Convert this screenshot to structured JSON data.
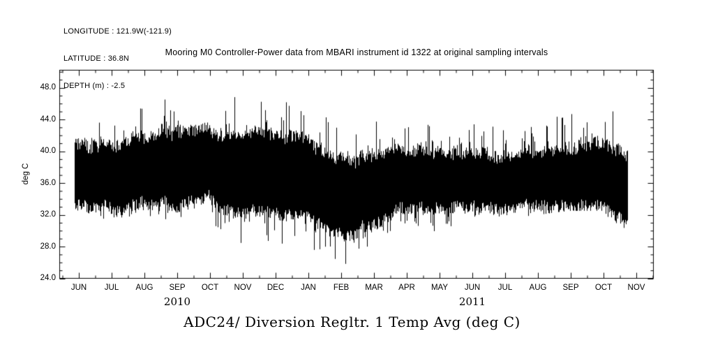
{
  "meta": {
    "longitude": "LONGITUDE : 121.9W(-121.9)",
    "latitude": "LATITUDE : 36.8N",
    "depth": "DEPTH (m) : -2.5"
  },
  "title": "Mooring M0 Controller-Power data from MBARI instrument id 1322 at original sampling intervals",
  "caption": "ADC24/ Diversion Regltr. 1 Temp Avg (deg C)",
  "chart_data": {
    "type": "line",
    "title": "Mooring M0 Controller-Power data from MBARI instrument id 1322 at original sampling intervals",
    "ylabel": "deg C",
    "ylim": [
      24,
      50.2
    ],
    "grid": false,
    "y_ticks": [
      24,
      28,
      32,
      36,
      40,
      44,
      48
    ],
    "y_tick_labels": [
      "24.0",
      "28.0",
      "32.0",
      "36.0",
      "40.0",
      "44.0",
      "48.0"
    ],
    "x_tick_labels": [
      "JUN",
      "JUL",
      "AUG",
      "SEP",
      "OCT",
      "NOV",
      "DEC",
      "JAN",
      "FEB",
      "MAR",
      "APR",
      "MAY",
      "JUN",
      "JUL",
      "AUG",
      "SEP",
      "OCT",
      "NOV"
    ],
    "years": [
      {
        "label": "2010",
        "month_start": 0,
        "month_end": 6
      },
      {
        "label": "2011",
        "month_start": 7,
        "month_end": 17
      }
    ],
    "series": [
      {
        "name": "ADC24/ Diversion Regltr. 1 Temp Avg (deg C)",
        "months": [
          "JUN 2010",
          "JUL 2010",
          "AUG 2010",
          "SEP 2010",
          "OCT 2010",
          "NOV 2010",
          "DEC 2010",
          "JAN 2011",
          "FEB 2011",
          "MAR 2011",
          "APR 2011",
          "MAY 2011",
          "JUN 2011",
          "JUL 2011",
          "AUG 2011",
          "SEP 2011",
          "OCT 2011",
          "NOV 2011"
        ],
        "band_low": [
          33.5,
          33.5,
          33.5,
          33.0,
          33.5,
          31.5,
          31.0,
          31.0,
          30.5,
          31.0,
          32.0,
          32.5,
          33.0,
          33.5,
          34.0,
          34.0,
          34.0,
          31.0
        ],
        "band_high": [
          41.0,
          41.5,
          42.0,
          42.5,
          42.0,
          41.5,
          41.0,
          40.5,
          40.0,
          39.5,
          39.5,
          39.5,
          40.0,
          40.0,
          40.5,
          41.5,
          42.0,
          40.0
        ],
        "spike_high": [
          43.5,
          44.5,
          45.5,
          47.5,
          48.5,
          46.5,
          46.0,
          46.5,
          44.0,
          44.0,
          43.0,
          43.5,
          44.5,
          43.0,
          44.5,
          48.5,
          49.3,
          42.0
        ],
        "spike_low": [
          31.5,
          31.5,
          32.0,
          31.0,
          31.5,
          26.0,
          26.5,
          28.0,
          25.5,
          28.0,
          29.5,
          30.0,
          31.0,
          31.5,
          32.0,
          32.5,
          32.5,
          26.5
        ]
      }
    ]
  }
}
